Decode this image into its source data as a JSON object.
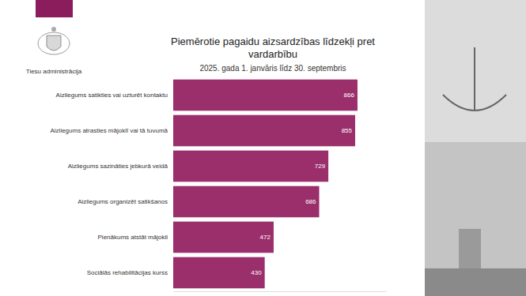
{
  "header": {
    "organization": "Tiesu administrācija"
  },
  "chart_data": {
    "type": "bar",
    "orientation": "horizontal",
    "title": "Piemērotie pagaidu aizsardzības līdzekļi pret vardarbību",
    "subtitle": "2025. gada 1. janvāris līdz 30. septembris",
    "categories": [
      "Aizliegums satikties vai uzturēt kontaktu",
      "Aizliegums atrasties mājoklī vai tā tuvumā",
      "Aizliegums sazināties jebkurā veidā",
      "Aizliegums organizēt satikšanos",
      "Pienākums atstāt mājokli",
      "Sociālās rehabilitācijas kurss"
    ],
    "values": [
      866,
      855,
      729,
      686,
      472,
      430
    ],
    "color": "#9b2f6b",
    "xlim": [
      0,
      1000
    ],
    "xticks": [],
    "data_labels": true,
    "tick_labels": false,
    "grid": false
  }
}
